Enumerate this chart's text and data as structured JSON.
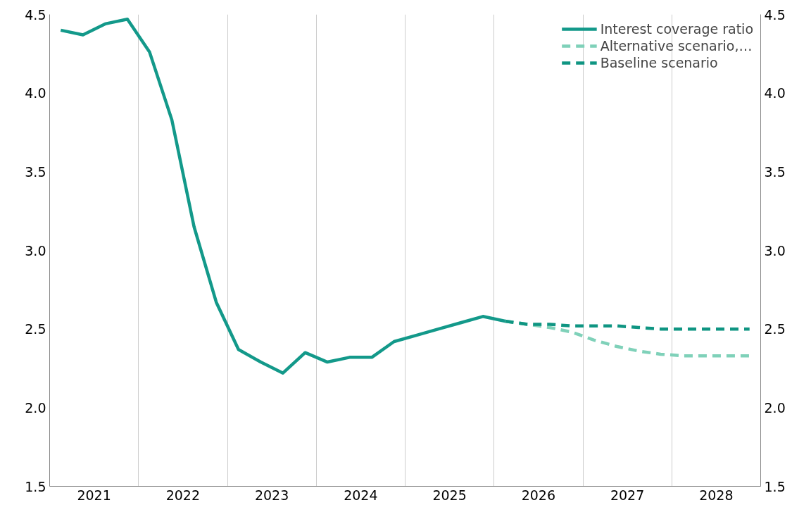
{
  "chart_data": {
    "type": "line",
    "series": [
      {
        "name": "Interest coverage ratio",
        "color": "#13998a",
        "line_style": "solid",
        "x": [
          2021.125,
          2021.375,
          2021.625,
          2021.875,
          2022.125,
          2022.375,
          2022.625,
          2022.875,
          2023.125,
          2023.375,
          2023.625,
          2023.875,
          2024.125,
          2024.375,
          2024.625,
          2024.875,
          2025.125,
          2025.375,
          2025.625,
          2025.875,
          2026.125
        ],
        "values": [
          4.4,
          4.37,
          4.44,
          4.47,
          4.26,
          3.83,
          3.15,
          2.67,
          2.37,
          2.29,
          2.22,
          2.35,
          2.29,
          2.32,
          2.32,
          2.42,
          2.46,
          2.5,
          2.54,
          2.58,
          2.55
        ]
      },
      {
        "name": "Alternative scenario,…",
        "color": "#7fd1b9",
        "line_style": "dashed",
        "x": [
          2026.125,
          2026.375,
          2026.625,
          2026.875,
          2027.125,
          2027.375,
          2027.625,
          2027.875,
          2028.125,
          2028.375,
          2028.625,
          2028.875
        ],
        "values": [
          2.55,
          2.53,
          2.51,
          2.48,
          2.43,
          2.39,
          2.36,
          2.34,
          2.33,
          2.33,
          2.33,
          2.33
        ]
      },
      {
        "name": "Baseline scenario",
        "color": "#0f9582",
        "line_style": "dashed",
        "x": [
          2026.125,
          2026.375,
          2026.625,
          2026.875,
          2027.125,
          2027.375,
          2027.625,
          2027.875,
          2028.125,
          2028.375,
          2028.625,
          2028.875
        ],
        "values": [
          2.55,
          2.53,
          2.53,
          2.52,
          2.52,
          2.52,
          2.51,
          2.5,
          2.5,
          2.5,
          2.5,
          2.5
        ]
      }
    ],
    "xlim": [
      2021,
      2029
    ],
    "xticks": [
      {
        "value": 2022,
        "label": null
      },
      {
        "value": 2023,
        "label": null
      },
      {
        "value": 2024,
        "label": null
      },
      {
        "value": 2025,
        "label": null
      },
      {
        "value": 2026,
        "label": null
      },
      {
        "value": 2027,
        "label": null
      },
      {
        "value": 2028,
        "label": null
      },
      {
        "value": 2021.5,
        "label": "2021"
      },
      {
        "value": 2022.5,
        "label": "2022"
      },
      {
        "value": 2023.5,
        "label": "2023"
      },
      {
        "value": 2024.5,
        "label": "2024"
      },
      {
        "value": 2025.5,
        "label": "2025"
      },
      {
        "value": 2026.5,
        "label": "2026"
      },
      {
        "value": 2027.5,
        "label": "2027"
      },
      {
        "value": 2028.5,
        "label": "2028"
      }
    ],
    "ylim": [
      1.5,
      4.5
    ],
    "yticks": [
      {
        "value": 1.5,
        "label": "1.5"
      },
      {
        "value": 2,
        "label": "2.0"
      },
      {
        "value": 2.5,
        "label": "2.5"
      },
      {
        "value": 3,
        "label": "3.0"
      },
      {
        "value": 3.5,
        "label": "3.5"
      },
      {
        "value": 4,
        "label": "4.0"
      },
      {
        "value": 4.5,
        "label": "4.5"
      }
    ],
    "y2lim": [
      1.5,
      4.5
    ],
    "y2ticks": [
      {
        "value": 1.5,
        "label": "1.5"
      },
      {
        "value": 2,
        "label": "2.0"
      },
      {
        "value": 2.5,
        "label": "2.5"
      },
      {
        "value": 3,
        "label": "3.0"
      },
      {
        "value": 3.5,
        "label": "3.5"
      },
      {
        "value": 4,
        "label": "4.0"
      },
      {
        "value": 4.5,
        "label": "4.5"
      }
    ],
    "grid": "x",
    "legend": "top right"
  }
}
